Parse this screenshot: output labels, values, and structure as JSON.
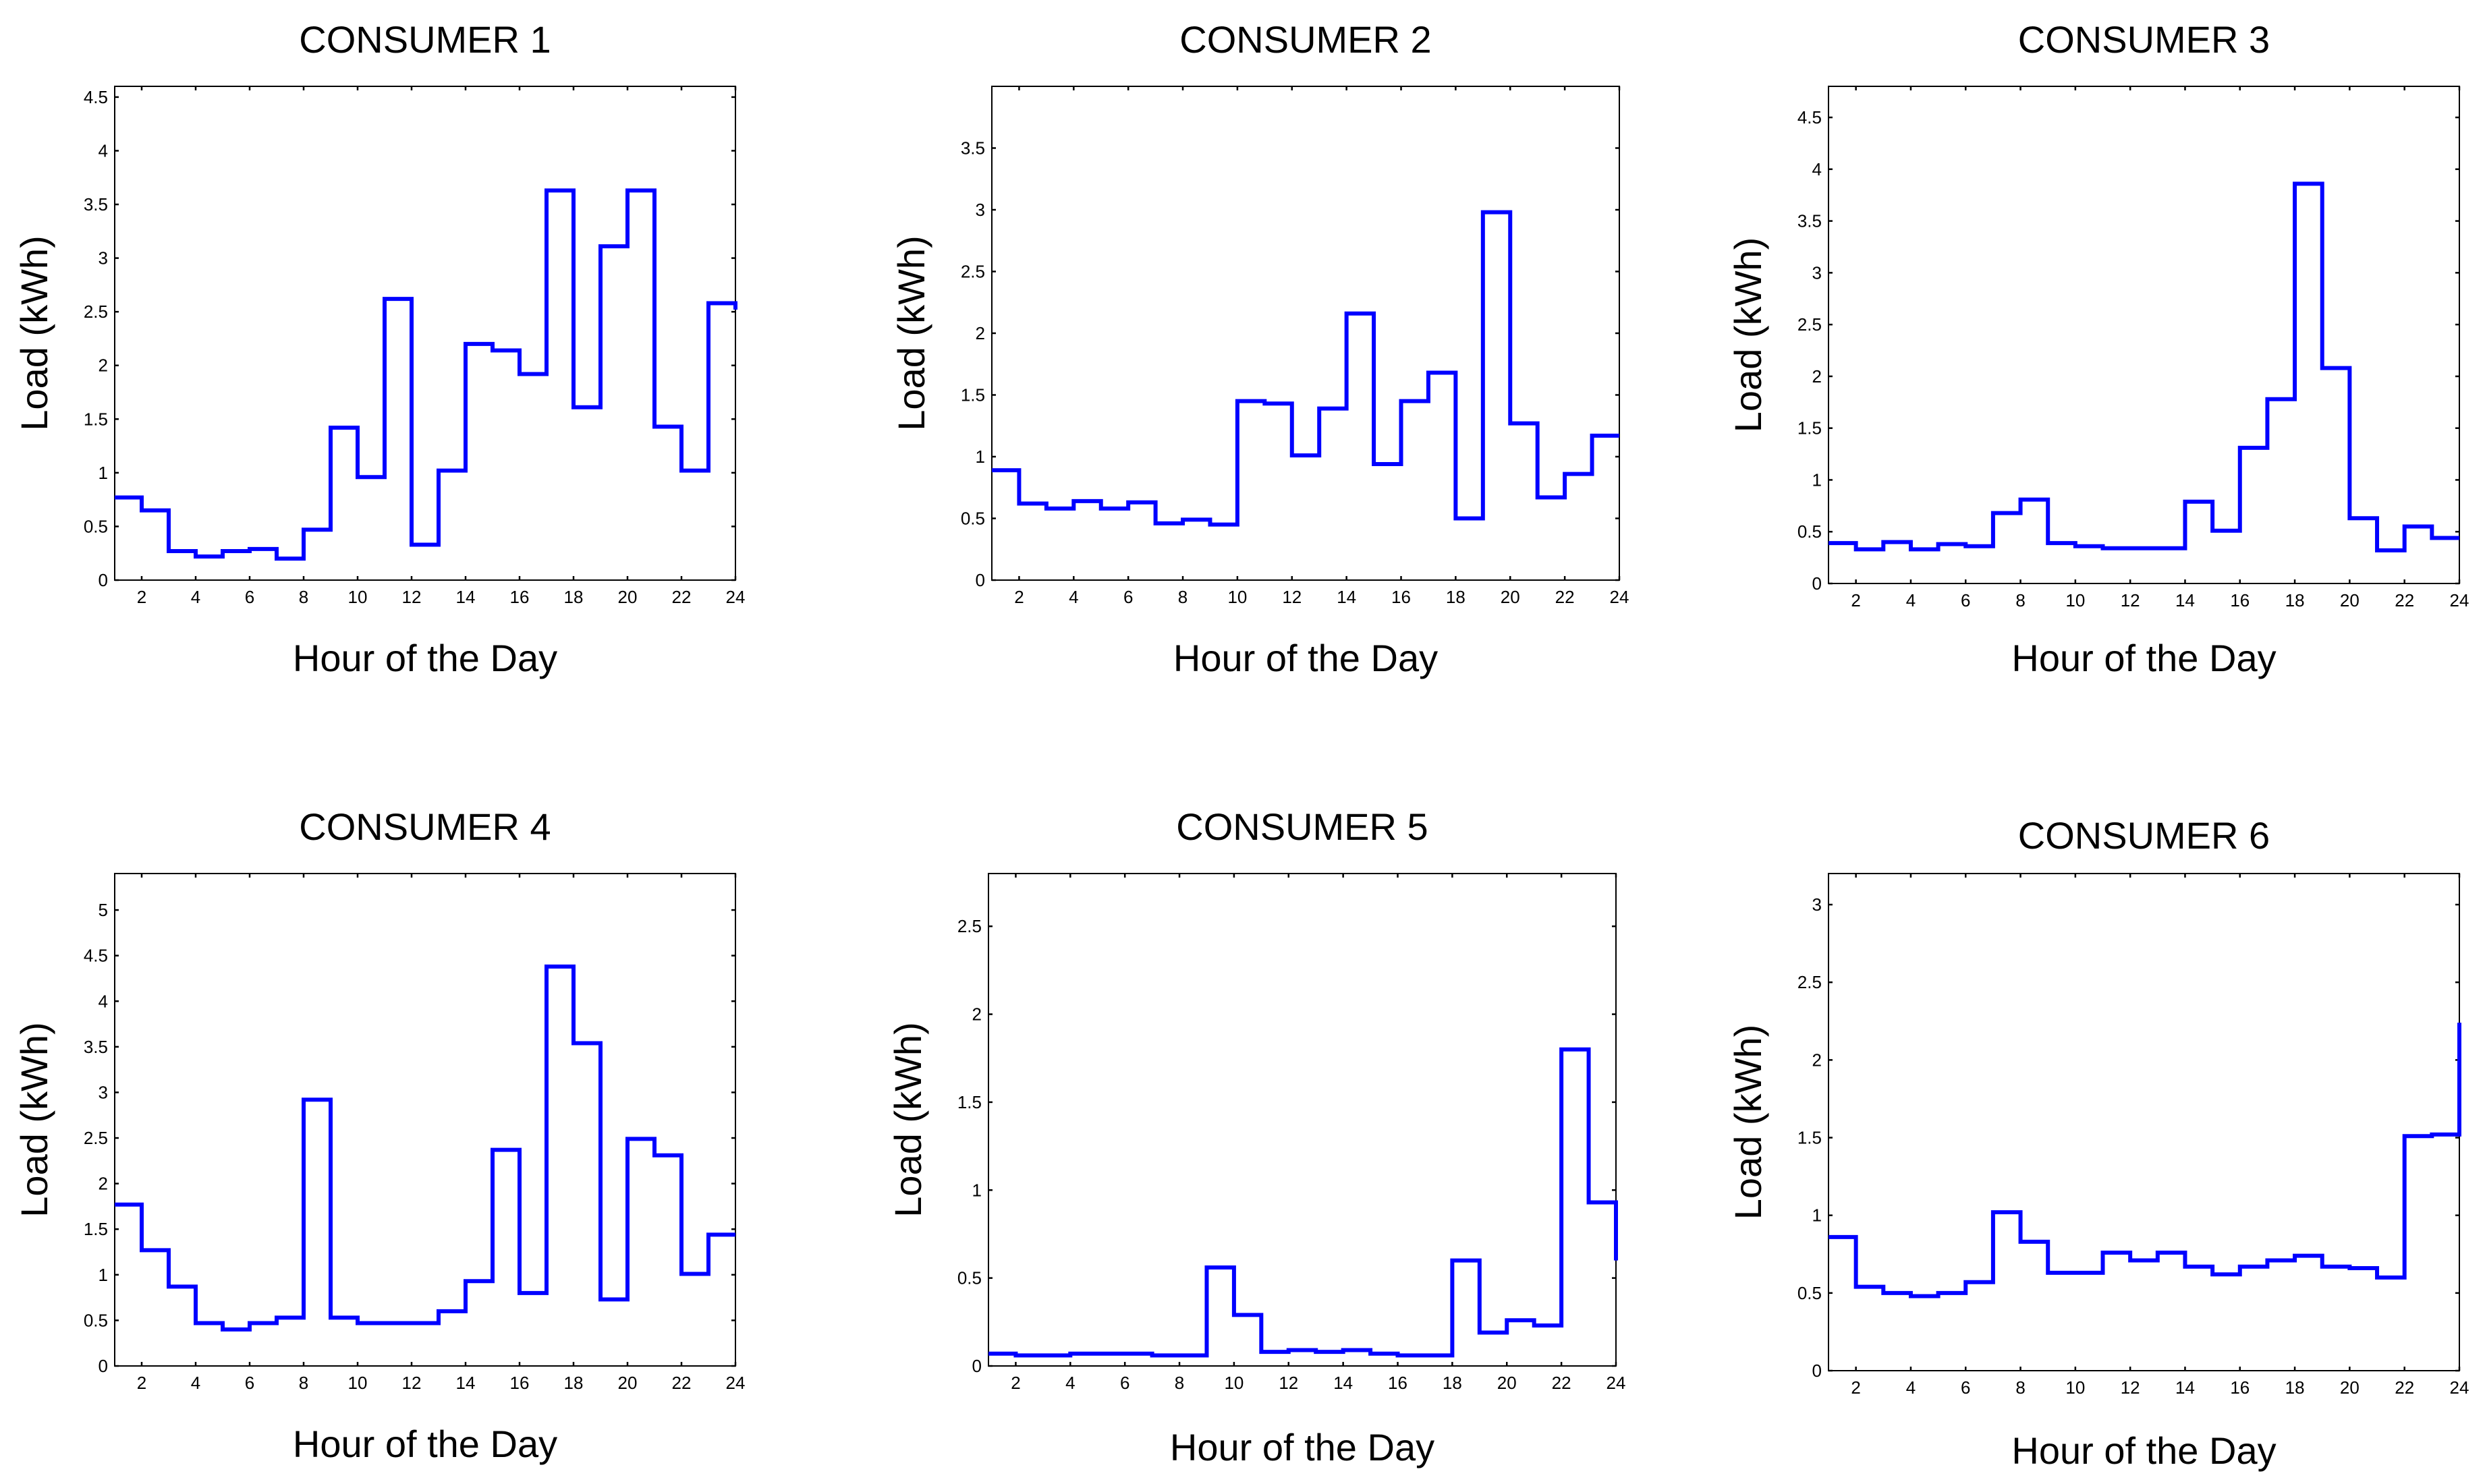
{
  "chart_data": [
    {
      "type": "line",
      "style": "stairs",
      "title": "CONSUMER 1",
      "xlabel": "Hour of the Day",
      "ylabel": "Load (kWh)",
      "xlim": [
        1,
        24
      ],
      "ylim": [
        0,
        4.6
      ],
      "xticks": [
        2,
        4,
        6,
        8,
        10,
        12,
        14,
        16,
        18,
        20,
        22,
        24
      ],
      "yticks": [
        0,
        0.5,
        1,
        1.5,
        2,
        2.5,
        3,
        3.5,
        4,
        4.5
      ],
      "color": "#0000ff",
      "x": [
        1,
        2,
        3,
        4,
        5,
        6,
        7,
        8,
        9,
        10,
        11,
        12,
        13,
        14,
        15,
        16,
        17,
        18,
        19,
        20,
        21,
        22,
        23,
        24
      ],
      "values": [
        0.77,
        0.65,
        0.27,
        0.22,
        0.27,
        0.29,
        0.2,
        0.47,
        1.42,
        0.96,
        2.62,
        0.33,
        1.02,
        2.2,
        2.14,
        1.92,
        3.63,
        1.61,
        3.11,
        3.63,
        1.43,
        1.02,
        2.58,
        2.52
      ]
    },
    {
      "type": "line",
      "style": "stairs",
      "title": "CONSUMER 2",
      "xlabel": "Hour of the Day",
      "ylabel": "Load (kWh)",
      "xlim": [
        1,
        24
      ],
      "ylim": [
        0,
        4.0
      ],
      "xticks": [
        2,
        4,
        6,
        8,
        10,
        12,
        14,
        16,
        18,
        20,
        22,
        24
      ],
      "yticks": [
        0,
        0.5,
        1,
        1.5,
        2,
        2.5,
        3,
        3.5
      ],
      "color": "#0000ff",
      "x": [
        1,
        2,
        3,
        4,
        5,
        6,
        7,
        8,
        9,
        10,
        11,
        12,
        13,
        14,
        15,
        16,
        17,
        18,
        19,
        20,
        21,
        22,
        23,
        24
      ],
      "values": [
        0.89,
        0.62,
        0.58,
        0.64,
        0.58,
        0.63,
        0.46,
        0.49,
        0.45,
        1.45,
        1.43,
        1.01,
        1.39,
        2.16,
        0.94,
        1.45,
        1.68,
        0.5,
        2.98,
        1.27,
        0.67,
        0.86,
        1.17,
        1.17
      ]
    },
    {
      "type": "line",
      "style": "stairs",
      "title": "CONSUMER 3",
      "xlabel": "Hour of the Day",
      "ylabel": "Load (kWh)",
      "xlim": [
        1,
        24
      ],
      "ylim": [
        0,
        4.8
      ],
      "xticks": [
        2,
        4,
        6,
        8,
        10,
        12,
        14,
        16,
        18,
        20,
        22,
        24
      ],
      "yticks": [
        0,
        0.5,
        1,
        1.5,
        2,
        2.5,
        3,
        3.5,
        4,
        4.5
      ],
      "color": "#0000ff",
      "x": [
        1,
        2,
        3,
        4,
        5,
        6,
        7,
        8,
        9,
        10,
        11,
        12,
        13,
        14,
        15,
        16,
        17,
        18,
        19,
        20,
        21,
        22,
        23,
        24
      ],
      "values": [
        0.39,
        0.33,
        0.4,
        0.33,
        0.38,
        0.36,
        0.68,
        0.81,
        0.39,
        0.36,
        0.34,
        0.34,
        0.34,
        0.79,
        0.51,
        1.31,
        1.78,
        3.86,
        2.08,
        0.63,
        0.32,
        0.55,
        0.44,
        0.44
      ]
    },
    {
      "type": "line",
      "style": "stairs",
      "title": "CONSUMER 4",
      "xlabel": "Hour of the Day",
      "ylabel": "Load (kWh)",
      "xlim": [
        1,
        24
      ],
      "ylim": [
        0,
        5.4
      ],
      "xticks": [
        2,
        4,
        6,
        8,
        10,
        12,
        14,
        16,
        18,
        20,
        22,
        24
      ],
      "yticks": [
        0,
        0.5,
        1,
        1.5,
        2,
        2.5,
        3,
        3.5,
        4,
        4.5,
        5
      ],
      "color": "#0000ff",
      "x": [
        1,
        2,
        3,
        4,
        5,
        6,
        7,
        8,
        9,
        10,
        11,
        12,
        13,
        14,
        15,
        16,
        17,
        18,
        19,
        20,
        21,
        22,
        23,
        24
      ],
      "values": [
        1.77,
        1.27,
        0.87,
        0.47,
        0.4,
        0.47,
        0.53,
        2.92,
        0.53,
        0.47,
        0.47,
        0.47,
        0.6,
        0.93,
        2.37,
        0.8,
        4.38,
        3.54,
        0.73,
        2.49,
        2.31,
        1.01,
        1.44,
        1.44
      ]
    },
    {
      "type": "line",
      "style": "stairs",
      "title": "CONSUMER 5",
      "xlabel": "Hour of the Day",
      "ylabel": "Load (kWh)",
      "xlim": [
        1,
        24
      ],
      "ylim": [
        0,
        2.8
      ],
      "xticks": [
        2,
        4,
        6,
        8,
        10,
        12,
        14,
        16,
        18,
        20,
        22,
        24
      ],
      "yticks": [
        0,
        0.5,
        1,
        1.5,
        2,
        2.5
      ],
      "color": "#0000ff",
      "x": [
        1,
        2,
        3,
        4,
        5,
        6,
        7,
        8,
        9,
        10,
        11,
        12,
        13,
        14,
        15,
        16,
        17,
        18,
        19,
        20,
        21,
        22,
        23,
        24
      ],
      "values": [
        0.07,
        0.06,
        0.06,
        0.07,
        0.07,
        0.07,
        0.06,
        0.06,
        0.56,
        0.29,
        0.08,
        0.09,
        0.08,
        0.09,
        0.07,
        0.06,
        0.06,
        0.6,
        0.19,
        0.26,
        0.23,
        1.8,
        0.93,
        0.6
      ]
    },
    {
      "type": "line",
      "style": "stairs",
      "title": "CONSUMER 6",
      "xlabel": "Hour of the Day",
      "ylabel": "Load (kWh)",
      "xlim": [
        1,
        24
      ],
      "ylim": [
        0,
        3.2
      ],
      "xticks": [
        2,
        4,
        6,
        8,
        10,
        12,
        14,
        16,
        18,
        20,
        22,
        24
      ],
      "yticks": [
        0,
        0.5,
        1,
        1.5,
        2,
        2.5,
        3
      ],
      "color": "#0000ff",
      "x": [
        1,
        2,
        3,
        4,
        5,
        6,
        7,
        8,
        9,
        10,
        11,
        12,
        13,
        14,
        15,
        16,
        17,
        18,
        19,
        20,
        21,
        22,
        23,
        24
      ],
      "values": [
        0.86,
        0.54,
        0.5,
        0.48,
        0.5,
        0.57,
        1.02,
        0.83,
        0.63,
        0.63,
        0.76,
        0.71,
        0.76,
        0.67,
        0.62,
        0.67,
        0.71,
        0.74,
        0.67,
        0.66,
        0.6,
        1.51,
        1.52,
        2.24
      ]
    }
  ]
}
